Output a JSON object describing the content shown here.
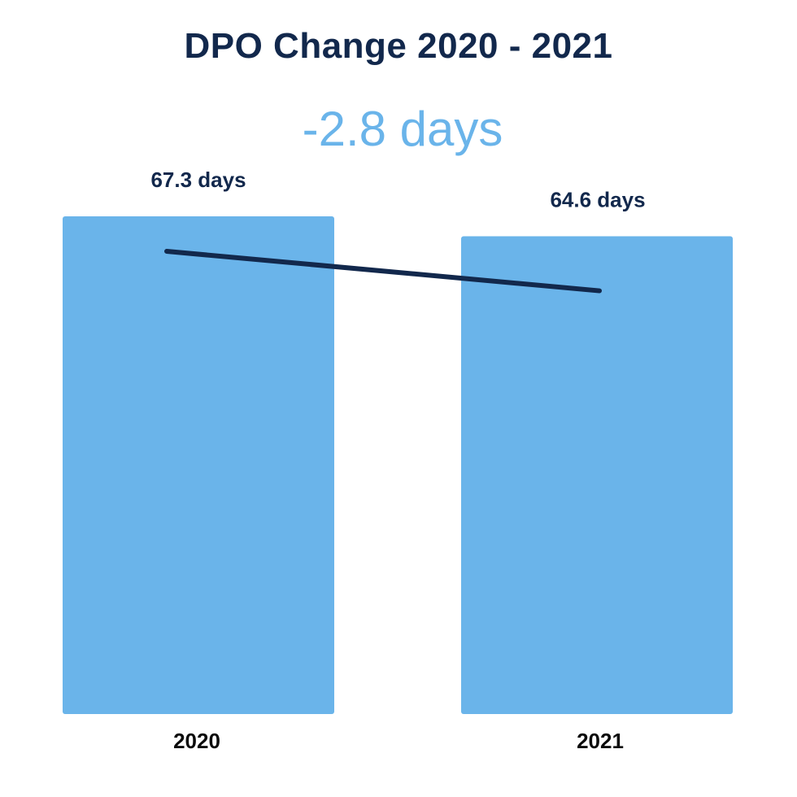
{
  "chart_data": {
    "type": "bar",
    "title": "DPO Change 2020 - 2021",
    "subtitle": "-2.8 days",
    "categories": [
      "2020",
      "2021"
    ],
    "values": [
      67.3,
      64.6
    ],
    "data_labels": [
      "67.3 days",
      "64.6 days"
    ],
    "unit": "days",
    "trend_line": true,
    "grid": false,
    "legend": "none",
    "colors": {
      "bar": "#6ab4ea",
      "line": "#12284c",
      "title": "#12284c",
      "subtitle": "#6ab4ea",
      "tick_label": "#0b0b0b"
    }
  }
}
